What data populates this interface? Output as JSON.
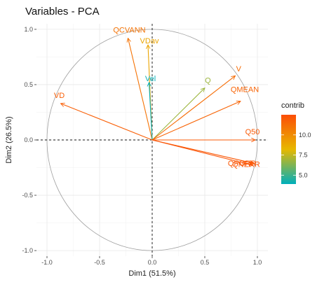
{
  "chart_data": {
    "type": "scatter",
    "title": "Variables - PCA",
    "xlabel": "Dim1 (51.5%)",
    "ylabel": "Dim2 (26.5%)",
    "xlim": [
      -1.1,
      1.1
    ],
    "ylim": [
      -1.05,
      1.05
    ],
    "xticks": [
      "-1.0",
      "-0.5",
      "0.0",
      "0.5",
      "1.0"
    ],
    "yticks": [
      "-1.0",
      "-0.5",
      "0.0",
      "0.5",
      "1.0"
    ],
    "grid": true,
    "correlation_circle": true,
    "legend": {
      "title": "contrib",
      "placement": "right",
      "range": [
        3.9,
        12.5
      ],
      "ticks": [
        "5.0",
        "7.5",
        "10.0"
      ],
      "colors": [
        "#00AFBB",
        "#E7B800",
        "#FC4E07"
      ]
    },
    "variables": [
      {
        "name": "QCVANN",
        "x": -0.23,
        "y": 0.92,
        "contrib": 11.0
      },
      {
        "name": "VDav",
        "x": -0.04,
        "y": 0.86,
        "contrib": 9.0
      },
      {
        "name": "Vel",
        "x": -0.03,
        "y": 0.52,
        "contrib": 4.0
      },
      {
        "name": "VD",
        "x": -0.87,
        "y": 0.33,
        "contrib": 11.8
      },
      {
        "name": "Q",
        "x": 0.5,
        "y": 0.47,
        "contrib": 6.8
      },
      {
        "name": "V",
        "x": 0.79,
        "y": 0.58,
        "contrib": 11.3
      },
      {
        "name": "QMEAN",
        "x": 0.84,
        "y": 0.35,
        "contrib": 11.6
      },
      {
        "name": "Q50",
        "x": 0.98,
        "y": 0.0,
        "contrib": 12.0
      },
      {
        "name": "QPORR",
        "x": 0.96,
        "y": -0.21,
        "contrib": 12.1
      },
      {
        "name": "QNERR",
        "x": 0.96,
        "y": -0.23,
        "contrib": 12.2
      }
    ]
  }
}
